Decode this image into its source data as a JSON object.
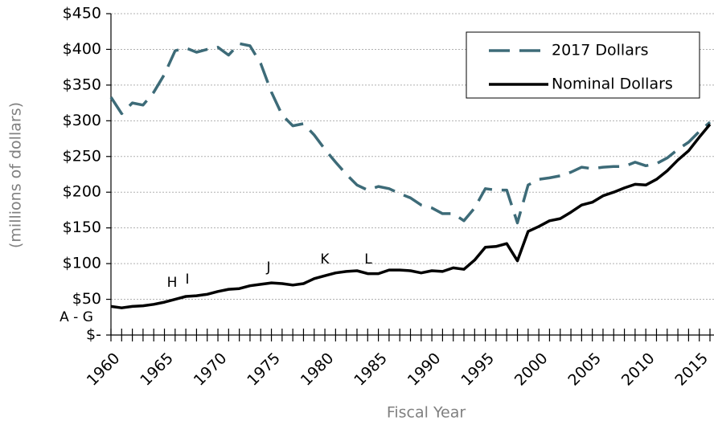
{
  "chart_data": {
    "type": "line",
    "x_label": "Fiscal Year",
    "y_label": "(millions of dollars)",
    "x": [
      1960,
      1961,
      1962,
      1963,
      1964,
      1965,
      1966,
      1967,
      1968,
      1969,
      1970,
      1971,
      1972,
      1973,
      1974,
      1975,
      1976,
      1977,
      1978,
      1979,
      1980,
      1981,
      1982,
      1983,
      1984,
      1985,
      1986,
      1987,
      1988,
      1989,
      1990,
      1991,
      1992,
      1993,
      1994,
      1995,
      1996,
      1997,
      1998,
      1999,
      2000,
      2001,
      2002,
      2003,
      2004,
      2005,
      2006,
      2007,
      2008,
      2009,
      2010,
      2011,
      2012,
      2013,
      2014,
      2015,
      2016
    ],
    "series": [
      {
        "name": "2017 Dollars",
        "color": "#3d6b78",
        "dashed": true,
        "values": [
          333,
          310,
          325,
          322,
          340,
          365,
          398,
          402,
          396,
          400,
          403,
          392,
          408,
          405,
          380,
          340,
          308,
          293,
          296,
          280,
          260,
          242,
          225,
          210,
          203,
          208,
          205,
          198,
          192,
          182,
          178,
          170,
          170,
          160,
          178,
          205,
          203,
          203,
          157,
          210,
          218,
          220,
          223,
          228,
          235,
          233,
          235,
          236,
          236,
          242,
          237,
          240,
          248,
          260,
          270,
          285,
          298
        ]
      },
      {
        "name": "Nominal Dollars",
        "color": "#000000",
        "dashed": false,
        "values": [
          40,
          38,
          40,
          41,
          43,
          46,
          50,
          54,
          55,
          57,
          61,
          64,
          65,
          69,
          71,
          73,
          72,
          70,
          72,
          79,
          83,
          87,
          89,
          90,
          86,
          86,
          91,
          91,
          90,
          87,
          90,
          89,
          94,
          92,
          105,
          123,
          124,
          128,
          104,
          145,
          152,
          160,
          163,
          172,
          182,
          186,
          195,
          200,
          206,
          211,
          210,
          218,
          230,
          245,
          258,
          277,
          295
        ]
      }
    ],
    "xlim": [
      1960,
      2016
    ],
    "xticks": [
      1960,
      1965,
      1970,
      1975,
      1980,
      1985,
      1990,
      1995,
      2000,
      2005,
      2010,
      2015
    ],
    "ylim": [
      0,
      450
    ],
    "yticks": [
      {
        "value": 0,
        "label": "$-"
      },
      {
        "value": 50,
        "label": "$50"
      },
      {
        "value": 100,
        "label": "$100"
      },
      {
        "value": 150,
        "label": "$150"
      },
      {
        "value": 200,
        "label": "$200"
      },
      {
        "value": 250,
        "label": "$250"
      },
      {
        "value": 300,
        "label": "$300"
      },
      {
        "value": 350,
        "label": "$350"
      },
      {
        "value": 400,
        "label": "$400"
      },
      {
        "value": 450,
        "label": "$450"
      }
    ],
    "grid": true,
    "legend": "upper right",
    "annotations": [
      "A - G",
      "H",
      "I",
      "J",
      "K",
      "L"
    ]
  }
}
